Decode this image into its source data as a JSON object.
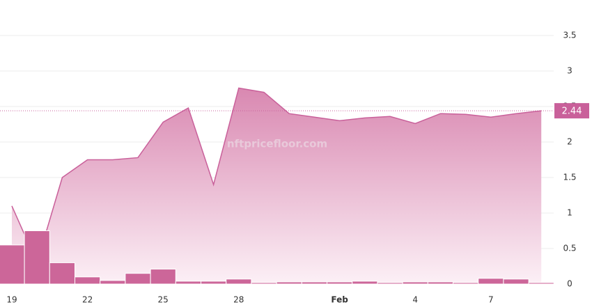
{
  "chart_data": {
    "type": "area_bar",
    "watermark": "nftpricefloor.com",
    "categories": [
      "19",
      null,
      null,
      "22",
      null,
      null,
      "25",
      null,
      null,
      "28",
      null,
      null,
      null,
      "Feb",
      null,
      null,
      "4",
      null,
      null,
      "7",
      null,
      null
    ],
    "series": [
      {
        "type": "area",
        "color": "#c9609a",
        "values": [
          1.1,
          0.3,
          1.5,
          1.75,
          1.75,
          1.78,
          2.28,
          2.48,
          1.4,
          2.76,
          2.7,
          2.4,
          2.35,
          2.3,
          2.34,
          2.36,
          2.26,
          2.4,
          2.39,
          2.35,
          2.4,
          2.44
        ]
      },
      {
        "type": "bar",
        "color": "#cc6699",
        "values": [
          0.55,
          0.75,
          0.3,
          0.1,
          0.05,
          0.15,
          0.21,
          0.04,
          0.04,
          0.07,
          0.02,
          0.03,
          0.03,
          0.03,
          0.04,
          0.02,
          0.03,
          0.03,
          0.02,
          0.08,
          0.07,
          0.02
        ]
      }
    ],
    "current_value": 2.44,
    "ylim": [
      0,
      3.5
    ],
    "yticks": [
      0,
      0.5,
      1,
      1.5,
      2,
      2.5,
      3,
      3.5
    ],
    "grid": true
  }
}
